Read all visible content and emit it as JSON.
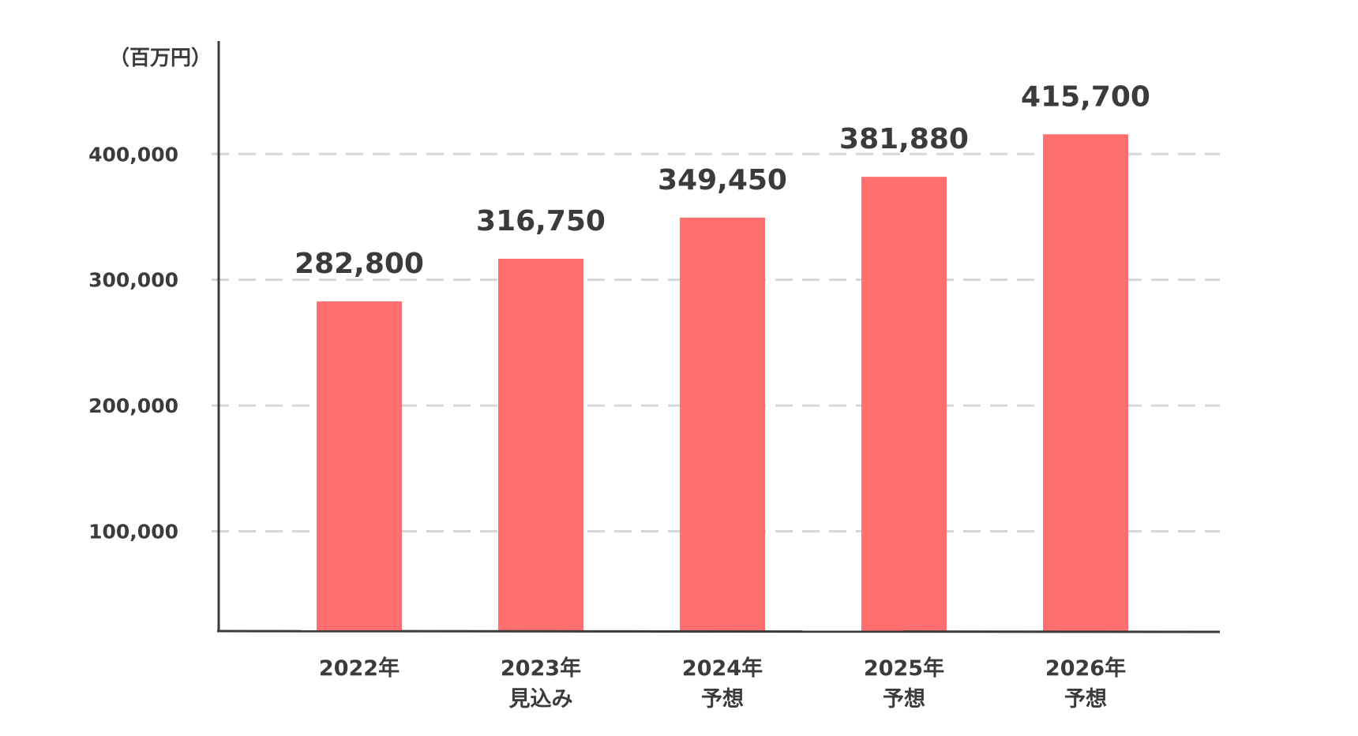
{
  "chart_data": {
    "type": "bar",
    "unit_label": "（百万円）",
    "categories": [
      [
        "2022年"
      ],
      [
        "2023年",
        "見込み"
      ],
      [
        "2024年",
        "予想"
      ],
      [
        "2025年",
        "予想"
      ],
      [
        "2026年",
        "予想"
      ]
    ],
    "values": [
      282800,
      316750,
      349450,
      381880,
      415700
    ],
    "value_labels": [
      "282,800",
      "316,750",
      "349,450",
      "381,880",
      "415,700"
    ],
    "yticks": [
      100000,
      200000,
      300000,
      400000
    ],
    "ytick_labels": [
      "100,000",
      "200,000",
      "300,000",
      "400,000"
    ],
    "ylim": [
      20000,
      460000
    ],
    "grid": true,
    "colors": {
      "bar": "#ff6f6f",
      "axis": "#3b3b3b",
      "grid": "#d6d6d6",
      "text": "#3b3b3b"
    }
  }
}
